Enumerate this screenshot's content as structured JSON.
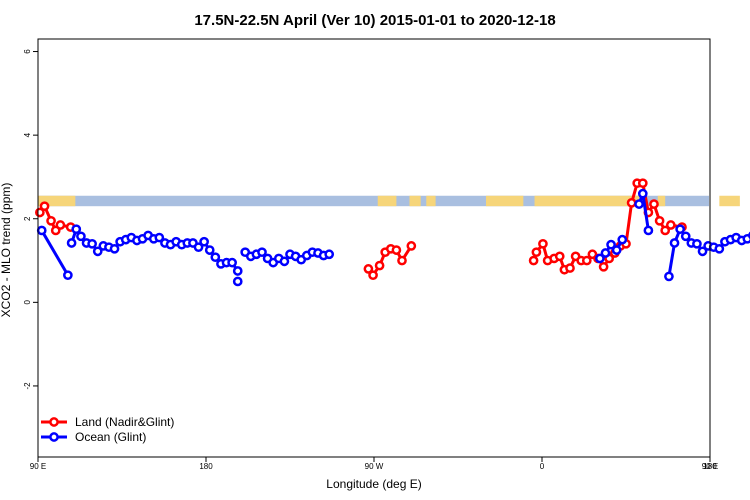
{
  "chart_data": {
    "type": "line",
    "title": "17.5N-22.5N April (Ver 10)   2015-01-01 to 2020-12-18",
    "xlabel": "Longitude (deg E)",
    "ylabel": "XCO2 - MLO trend (ppm)",
    "xlim": [
      90,
      450
    ],
    "ylim": [
      -3.7,
      6.3
    ],
    "x_ticks": [
      {
        "value": 90,
        "label": "90 E"
      },
      {
        "value": 180,
        "label": "180"
      },
      {
        "value": 270,
        "label": "90 W"
      },
      {
        "value": 360,
        "label": "0"
      },
      {
        "value": 450,
        "label": "90 E"
      }
    ],
    "x_ticks_right": [
      {
        "value": 540,
        "label": "180"
      }
    ],
    "y_ticks": [
      {
        "value": -2,
        "label": "-2"
      },
      {
        "value": 0,
        "label": "0"
      },
      {
        "value": 2,
        "label": "2"
      },
      {
        "value": 4,
        "label": "4"
      },
      {
        "value": 6,
        "label": "6"
      }
    ],
    "grid": false,
    "legend": {
      "placement": "bottom-left",
      "entries": [
        {
          "label": "Land (Nadir&Glint)",
          "color": "#ff0000"
        },
        {
          "label": "Ocean (Glint)",
          "color": "#0000ff"
        }
      ]
    },
    "land_mask_band": {
      "y_range": [
        2.3,
        2.55
      ],
      "ocean_color": "#a9bfe0",
      "land_color": "#f6d57a",
      "land_x_ranges": [
        [
          90,
          110
        ],
        [
          272,
          282
        ],
        [
          289,
          295
        ],
        [
          298,
          303
        ],
        [
          330,
          350
        ],
        [
          356,
          412
        ],
        [
          422,
          426
        ],
        [
          455,
          466
        ]
      ]
    },
    "series": [
      {
        "name": "Land (Nadir&Glint)",
        "color": "#ff0000",
        "segments": [
          [
            [
              91,
              2.15
            ],
            [
              93.5,
              2.3
            ],
            [
              97,
              1.95
            ],
            [
              99.5,
              1.72
            ],
            [
              102,
              1.85
            ],
            [
              107.5,
              1.8
            ]
          ],
          [
            [
              267,
              0.8
            ],
            [
              269.5,
              0.65
            ],
            [
              273,
              0.88
            ],
            [
              276,
              1.2
            ],
            [
              279,
              1.28
            ],
            [
              282,
              1.25
            ],
            [
              285,
              1.0
            ],
            [
              290,
              1.35
            ]
          ],
          [
            [
              355.5,
              1.0
            ],
            [
              357,
              1.2
            ],
            [
              360.5,
              1.4
            ],
            [
              363,
              1.0
            ],
            [
              366.5,
              1.05
            ],
            [
              369.5,
              1.1
            ],
            [
              372,
              0.78
            ],
            [
              375,
              0.82
            ],
            [
              378,
              1.1
            ],
            [
              381,
              1.0
            ],
            [
              384,
              1.0
            ],
            [
              387,
              1.15
            ],
            [
              390,
              1.05
            ],
            [
              393,
              0.85
            ],
            [
              396,
              1.05
            ],
            [
              399,
              1.18
            ],
            [
              402,
              1.35
            ],
            [
              405,
              1.4
            ],
            [
              408,
              2.38
            ],
            [
              411,
              2.85
            ],
            [
              414,
              2.85
            ],
            [
              417,
              2.15
            ],
            [
              420,
              2.35
            ],
            [
              423,
              1.95
            ],
            [
              426,
              1.72
            ],
            [
              429,
              1.85
            ],
            [
              435,
              1.8
            ]
          ]
        ]
      },
      {
        "name": "Ocean (Glint)",
        "color": "#0000ff",
        "segments": [
          [
            [
              92,
              1.72
            ],
            [
              106,
              0.65
            ]
          ],
          [
            [
              108,
              1.42
            ],
            [
              110.5,
              1.75
            ],
            [
              113,
              1.58
            ],
            [
              116,
              1.42
            ],
            [
              119,
              1.4
            ],
            [
              122,
              1.22
            ],
            [
              125,
              1.35
            ],
            [
              128,
              1.32
            ],
            [
              131,
              1.28
            ],
            [
              134,
              1.45
            ],
            [
              137,
              1.5
            ],
            [
              140,
              1.55
            ],
            [
              143,
              1.48
            ],
            [
              146,
              1.52
            ],
            [
              149,
              1.6
            ],
            [
              152,
              1.52
            ],
            [
              155,
              1.55
            ],
            [
              158,
              1.42
            ],
            [
              161,
              1.38
            ],
            [
              164,
              1.45
            ],
            [
              167,
              1.38
            ],
            [
              170,
              1.42
            ],
            [
              173,
              1.42
            ],
            [
              176,
              1.32
            ],
            [
              179,
              1.45
            ],
            [
              182,
              1.25
            ],
            [
              185,
              1.08
            ],
            [
              188,
              0.92
            ],
            [
              191,
              0.95
            ],
            [
              194,
              0.95
            ],
            [
              197,
              0.75
            ]
          ],
          [
            [
              197,
              0.5
            ]
          ],
          [
            [
              201,
              1.2
            ],
            [
              204,
              1.1
            ],
            [
              207,
              1.15
            ],
            [
              210,
              1.2
            ],
            [
              213,
              1.05
            ],
            [
              216,
              0.95
            ],
            [
              219,
              1.05
            ],
            [
              222,
              0.98
            ],
            [
              225,
              1.15
            ],
            [
              228,
              1.1
            ],
            [
              231,
              1.02
            ],
            [
              234,
              1.12
            ],
            [
              237,
              1.2
            ],
            [
              240,
              1.18
            ],
            [
              243,
              1.12
            ],
            [
              246,
              1.15
            ]
          ],
          [
            [
              391,
              1.05
            ],
            [
              394,
              1.18
            ],
            [
              397,
              1.38
            ],
            [
              400,
              1.25
            ],
            [
              403,
              1.5
            ]
          ],
          [
            [
              412,
              2.35
            ],
            [
              414,
              2.6
            ],
            [
              417,
              1.72
            ]
          ],
          [
            [
              428,
              0.62
            ],
            [
              431,
              1.42
            ],
            [
              434,
              1.75
            ],
            [
              437,
              1.58
            ],
            [
              440,
              1.42
            ],
            [
              443,
              1.4
            ],
            [
              446,
              1.22
            ],
            [
              449,
              1.35
            ],
            [
              452,
              1.32
            ],
            [
              455,
              1.28
            ],
            [
              458,
              1.45
            ],
            [
              461,
              1.5
            ],
            [
              464,
              1.55
            ],
            [
              467,
              1.48
            ],
            [
              470,
              1.52
            ],
            [
              473,
              1.6
            ]
          ]
        ]
      }
    ]
  }
}
